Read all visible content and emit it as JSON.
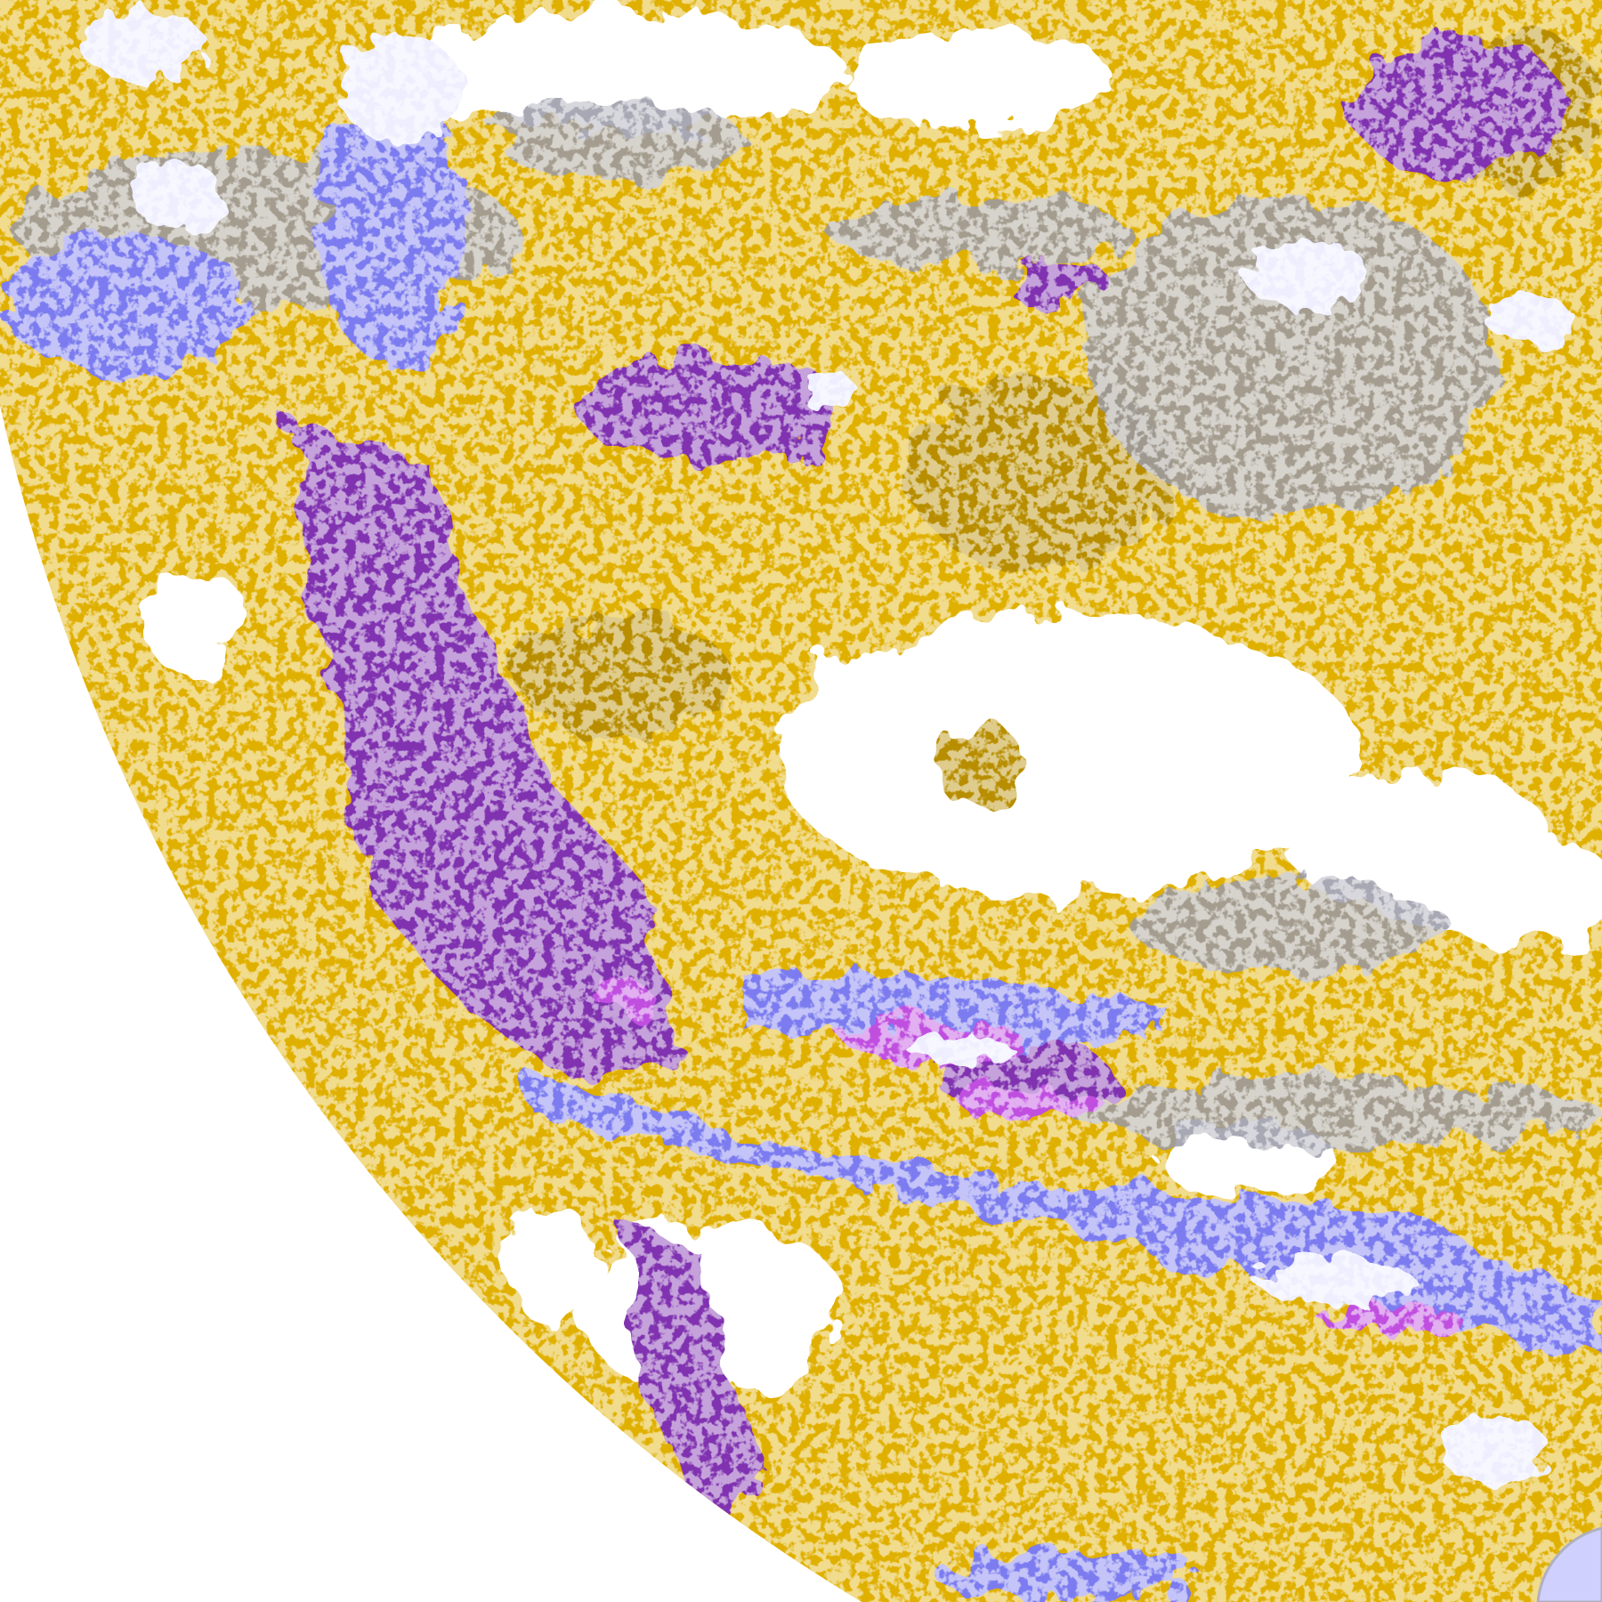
{
  "image": {
    "kind": "false-color satellite cloud classification",
    "colors": {
      "background": "#ffffff",
      "gold": "#e0b000",
      "dark_gold": "#b88e00",
      "purple": "#8033b0",
      "magenta": "#c050e0",
      "blue": "#7b7bf0",
      "light": "#eeeeff",
      "gray": "#9a9aa8"
    }
  }
}
